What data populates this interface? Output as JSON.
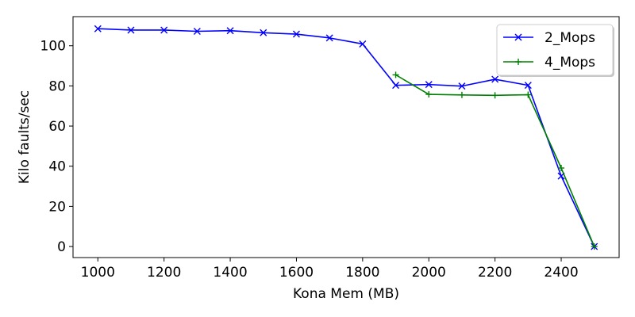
{
  "chart_data": {
    "type": "line",
    "title": "",
    "xlabel": "Kona Mem (MB)",
    "ylabel": "Kilo faults/sec",
    "xlim": [
      925,
      2575
    ],
    "ylim": [
      -5.5,
      114.5
    ],
    "xticks": [
      1000,
      1200,
      1400,
      1600,
      1800,
      2000,
      2200,
      2400
    ],
    "yticks": [
      0,
      20,
      40,
      60,
      80,
      100
    ],
    "grid": false,
    "legend_position": "top-right",
    "series": [
      {
        "name": "2_Mops",
        "color": "#0000ff",
        "marker": "x",
        "x": [
          1000,
          1100,
          1200,
          1300,
          1400,
          1500,
          1600,
          1700,
          1800,
          1900,
          2000,
          2100,
          2200,
          2300,
          2400,
          2500
        ],
        "y": [
          108.5,
          107.8,
          107.8,
          107.2,
          107.5,
          106.5,
          105.8,
          103.9,
          100.9,
          80.3,
          80.7,
          79.9,
          83.3,
          80.3,
          35.1,
          0
        ]
      },
      {
        "name": "4_Mops",
        "color": "#008000",
        "marker": "+",
        "x": [
          1900,
          2000,
          2100,
          2200,
          2300,
          2400,
          2500
        ],
        "y": [
          85.5,
          75.8,
          75.5,
          75.3,
          75.6,
          39.1,
          0
        ]
      }
    ]
  }
}
